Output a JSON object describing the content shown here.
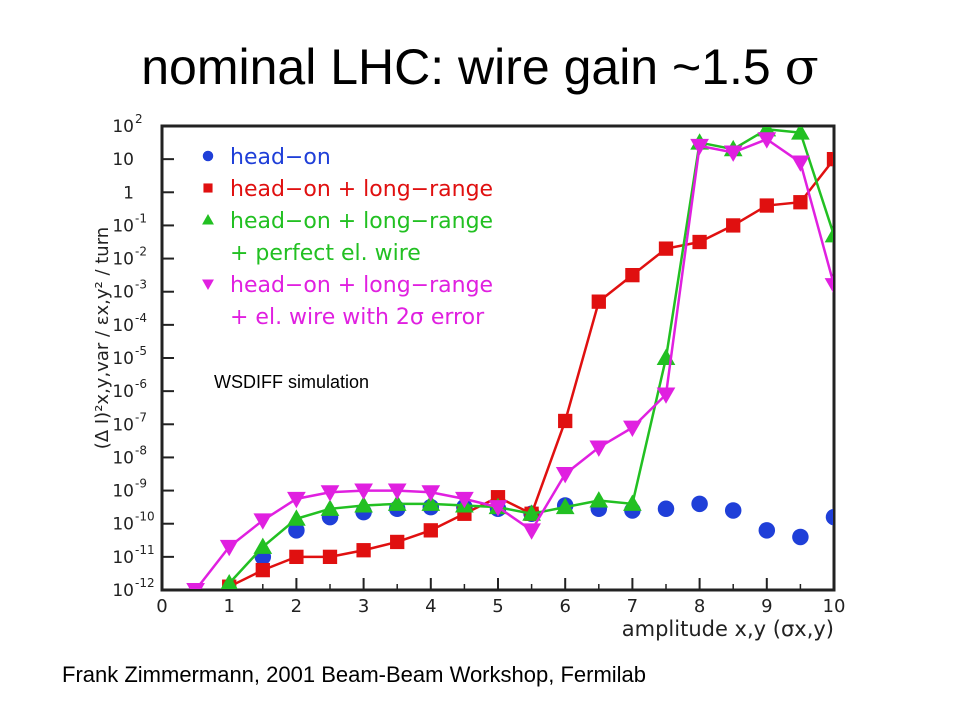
{
  "slide": {
    "title_main": "nominal LHC: wire gain ~1.5",
    "title_symbol": "σ",
    "annotation": "WSDIFF simulation",
    "footer": "Frank Zimmermann, 2001 Beam-Beam Workshop, Fermilab"
  },
  "chart_data": {
    "type": "scatter",
    "xlabel": "amplitude x,y (σx,y)",
    "ylabel": "(Δ I)²x,y,var / εx,y² / turn",
    "xlim": [
      0,
      10
    ],
    "ylim_log10": [
      -12,
      2
    ],
    "y_scale": "log",
    "x_ticks": [
      "0",
      "1",
      "2",
      "3",
      "4",
      "5",
      "6",
      "7",
      "8",
      "9",
      "10"
    ],
    "y_ticks": [
      {
        "exp": 2,
        "label": "10",
        "sup": "2"
      },
      {
        "exp": 1,
        "label": "10",
        "sup": ""
      },
      {
        "exp": 0,
        "label": "1",
        "sup": ""
      },
      {
        "exp": -1,
        "label": "10",
        "sup": "-1"
      },
      {
        "exp": -2,
        "label": "10",
        "sup": "-2"
      },
      {
        "exp": -3,
        "label": "10",
        "sup": "-3"
      },
      {
        "exp": -4,
        "label": "10",
        "sup": "-4"
      },
      {
        "exp": -5,
        "label": "10",
        "sup": "-5"
      },
      {
        "exp": -6,
        "label": "10",
        "sup": "-6"
      },
      {
        "exp": -7,
        "label": "10",
        "sup": "-7"
      },
      {
        "exp": -8,
        "label": "10",
        "sup": "-8"
      },
      {
        "exp": -9,
        "label": "10",
        "sup": "-9"
      },
      {
        "exp": -10,
        "label": "10",
        "sup": "-10"
      },
      {
        "exp": -11,
        "label": "10",
        "sup": "-11"
      },
      {
        "exp": -12,
        "label": "10",
        "sup": "-12"
      }
    ],
    "legend_position": "top-left",
    "grid": false,
    "series": [
      {
        "name": "head−on",
        "color": "#1f3fd8",
        "marker": "circle",
        "line": false,
        "x": [
          1,
          1.5,
          2,
          2.5,
          3,
          3.5,
          4,
          4.5,
          5,
          5.5,
          6,
          6.5,
          7,
          7.5,
          8,
          8.5,
          9,
          9.5,
          10
        ],
        "log10_y": [
          -12.1,
          -11.0,
          -10.2,
          -9.8,
          -9.65,
          -9.55,
          -9.5,
          -9.5,
          -9.55,
          -9.7,
          -9.45,
          -9.55,
          -9.6,
          -9.55,
          -9.4,
          -9.6,
          -10.2,
          -10.4,
          -9.8
        ]
      },
      {
        "name": "head−on + long−range",
        "color": "#e01010",
        "marker": "square",
        "line": true,
        "x": [
          1,
          1.5,
          2,
          2.5,
          3,
          3.5,
          4,
          4.5,
          5,
          5.5,
          6,
          6.5,
          7,
          7.5,
          8,
          8.5,
          9,
          9.5,
          10
        ],
        "log10_y": [
          -11.9,
          -11.4,
          -11.0,
          -11.0,
          -10.8,
          -10.55,
          -10.2,
          -9.7,
          -9.2,
          -9.7,
          -6.9,
          -3.3,
          -2.5,
          -1.7,
          -1.5,
          -1.0,
          -0.4,
          -0.3,
          1.0
        ]
      },
      {
        "name": "head−on + long−range + perfect el. wire",
        "color": "#22c022",
        "marker": "triangle-up",
        "line": true,
        "x": [
          1,
          1.5,
          2,
          2.5,
          3,
          3.5,
          4,
          4.5,
          5,
          5.5,
          6,
          6.5,
          7,
          7.5,
          8,
          8.5,
          9,
          9.5,
          10
        ],
        "log10_y": [
          -11.8,
          -10.7,
          -9.85,
          -9.55,
          -9.45,
          -9.4,
          -9.4,
          -9.45,
          -9.5,
          -9.7,
          -9.5,
          -9.3,
          -9.4,
          -5.0,
          1.5,
          1.3,
          1.9,
          1.8,
          -1.3
        ]
      },
      {
        "name": "head−on + long−range + el. wire with 2σ error",
        "color": "#e020e0",
        "marker": "triangle-down",
        "line": true,
        "x": [
          0.5,
          1,
          1.5,
          2,
          2.5,
          3,
          3.5,
          4,
          4.5,
          5,
          5.5,
          6,
          6.5,
          7,
          7.5,
          8,
          8.5,
          9,
          9.5,
          10
        ],
        "log10_y": [
          -12.0,
          -10.7,
          -9.9,
          -9.25,
          -9.05,
          -9.0,
          -9.0,
          -9.05,
          -9.25,
          -9.5,
          -10.2,
          -8.5,
          -7.7,
          -7.1,
          -6.1,
          1.4,
          1.2,
          1.6,
          0.9,
          -2.8
        ]
      }
    ],
    "legend": [
      {
        "series": 0,
        "lines": [
          "head−on"
        ]
      },
      {
        "series": 1,
        "lines": [
          "head−on + long−range"
        ]
      },
      {
        "series": 2,
        "lines": [
          "head−on + long−range",
          "+ perfect el. wire"
        ]
      },
      {
        "series": 3,
        "lines": [
          "head−on + long−range",
          "+ el. wire with 2σ error"
        ]
      }
    ]
  }
}
